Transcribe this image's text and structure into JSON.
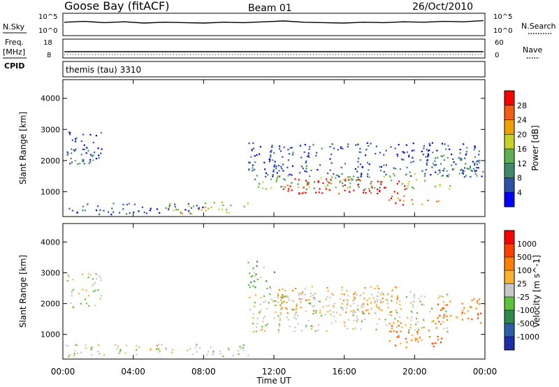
{
  "header": {
    "station": "Goose Bay (fitACF)",
    "beam": "Beam 01",
    "date": "26/Oct/2010",
    "cpid": "CPID",
    "program": "themis (tau) 3310"
  },
  "chart_data": [
    {
      "id": "nsky",
      "type": "line",
      "left_label": "N.Sky",
      "right_label": "N.Search",
      "left_ticks": [
        "10^5",
        "10^0"
      ],
      "right_ticks": [
        "10^5",
        "10^0"
      ],
      "series": [
        {
          "values": [
            3.2,
            3.4,
            3.1,
            3.3,
            3.0,
            3.2,
            3.1,
            3.0,
            3.2,
            3.1,
            3.3,
            3.5,
            3.2,
            3.1,
            3.0,
            3.2,
            3.1,
            3.3,
            3.2,
            3.4,
            3.3,
            3.6
          ]
        }
      ]
    },
    {
      "id": "freq",
      "type": "line",
      "left_label": "Freq.",
      "left_unit": "[MHz]",
      "right_label": "Nave",
      "left_ticks": [
        "18",
        "8"
      ],
      "right_ticks": [
        "60",
        "0"
      ],
      "series": [
        {
          "values": [
            10,
            10,
            10,
            10,
            10,
            10,
            10,
            10,
            10,
            10,
            10,
            10
          ]
        }
      ]
    },
    {
      "id": "power",
      "type": "heatmap",
      "ylabel": "Slant Range [km]",
      "yticks": [
        "1000",
        "2000",
        "3000",
        "4000"
      ],
      "ylim": [
        200,
        4600
      ],
      "xlim": [
        0,
        24
      ],
      "colorbar_label": "Power [dB]",
      "colorbar_ticks": [
        "4",
        "8",
        "12",
        "16",
        "20",
        "24",
        "28"
      ],
      "colorbar_colors": [
        "#0000ff",
        "#2e4faa",
        "#3f8a6a",
        "#5fb050",
        "#c8d12a",
        "#f0a000",
        "#f06010",
        "#ff0000"
      ],
      "regions": [
        {
          "t": [
            0.2,
            2.2
          ],
          "r": [
            1900,
            3000
          ],
          "level": 1
        },
        {
          "t": [
            0.2,
            2.2
          ],
          "r": [
            1900,
            2300
          ],
          "level": 2
        },
        {
          "t": [
            0.1,
            8.0
          ],
          "r": [
            280,
            650
          ],
          "level": 1
        },
        {
          "t": [
            6.0,
            10.5
          ],
          "r": [
            320,
            700
          ],
          "level": 4
        },
        {
          "t": [
            10.5,
            23.8
          ],
          "r": [
            1500,
            2600
          ],
          "level": 1
        },
        {
          "t": [
            10.8,
            22.0
          ],
          "r": [
            1100,
            1600
          ],
          "level": 3
        },
        {
          "t": [
            12.5,
            19.5
          ],
          "r": [
            950,
            1450
          ],
          "level": 7
        },
        {
          "t": [
            18.5,
            21.5
          ],
          "r": [
            600,
            900
          ],
          "level": 6
        },
        {
          "t": [
            21.0,
            24.0
          ],
          "r": [
            1500,
            2200
          ],
          "level": 2
        }
      ]
    },
    {
      "id": "velocity",
      "type": "heatmap",
      "ylabel": "Slant Range [km]",
      "yticks": [
        "1000",
        "2000",
        "3000",
        "4000"
      ],
      "ylim": [
        200,
        4600
      ],
      "xlim": [
        0,
        24
      ],
      "xlabel": "Time UT",
      "xticks": [
        "00:00",
        "04:00",
        "08:00",
        "12:00",
        "16:00",
        "20:00",
        "00:00"
      ],
      "colorbar_label": "Velocity [m s^-1]",
      "colorbar_ticks": [
        "1000",
        "500",
        "100",
        "25",
        "-25",
        "-100",
        "-500",
        "-1000"
      ],
      "colorbar_colors": [
        "#1a2ea8",
        "#2b5fa8",
        "#2e8a4a",
        "#5cc23a",
        "#c8c8c8",
        "#ffb030",
        "#ff8000",
        "#ff4000",
        "#ff0000"
      ],
      "regions": [
        {
          "t": [
            0.2,
            2.2
          ],
          "r": [
            1900,
            3000
          ],
          "level": 4
        },
        {
          "t": [
            0.1,
            10.5
          ],
          "r": [
            280,
            700
          ],
          "level": 4
        },
        {
          "t": [
            10.5,
            22.0
          ],
          "r": [
            1100,
            2400
          ],
          "level": 4
        },
        {
          "t": [
            12.0,
            19.0
          ],
          "r": [
            1700,
            2600
          ],
          "level": 5
        },
        {
          "t": [
            18.5,
            21.5
          ],
          "r": [
            600,
            1400
          ],
          "level": 6
        },
        {
          "t": [
            21.0,
            24.0
          ],
          "r": [
            1400,
            2200
          ],
          "level": 6
        },
        {
          "t": [
            10.5,
            12.0
          ],
          "r": [
            2500,
            3400
          ],
          "level": 3
        }
      ]
    }
  ]
}
